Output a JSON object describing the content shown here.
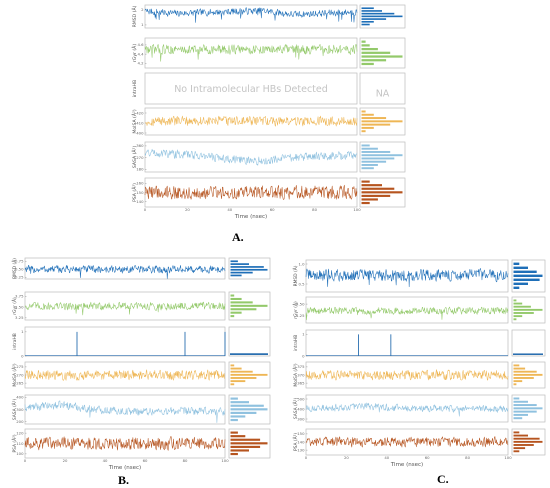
{
  "figure": {
    "captions": [
      "A.",
      "B.",
      "C."
    ]
  },
  "colors": {
    "rmsd": "#1f6fb8",
    "rg": "#93c96a",
    "intraHB": "#2a6fb0",
    "molsa": "#eeb655",
    "sasa": "#8fc1df",
    "psa": "#b6541f",
    "frame": "#bbbbbb",
    "na_text": "#c4c4c4"
  },
  "chart_data": [
    {
      "type": "line",
      "panel": "A.",
      "xlabel": "Time (nsec)",
      "xlim": [
        0,
        100
      ],
      "xticks": [
        "0",
        "20",
        "40",
        "60",
        "80",
        "100"
      ],
      "no_data_message": "No Intramolecular HBs Detected",
      "na_label": "NA",
      "series": [
        {
          "key": "rmsd",
          "ylabel": "RMSD (Å)",
          "yticks": [
            "2",
            "1"
          ],
          "ylim": [
            0.8,
            2.3
          ],
          "base": 1.9,
          "amp": 0.15,
          "trend": [
            [
              0,
              0
            ],
            [
              0.15,
              -0.2
            ],
            [
              0.3,
              -0.1
            ],
            [
              0.55,
              0.05
            ],
            [
              0.7,
              -0.3
            ],
            [
              1,
              -0.05
            ]
          ],
          "spikes": 14,
          "hist": [
            3,
            5,
            8,
            10,
            6,
            3,
            2
          ]
        },
        {
          "key": "rg",
          "ylabel": "rGyr (Å)",
          "yticks": [
            "4.6",
            "4.4",
            "4.2"
          ],
          "ylim": [
            4.1,
            4.75
          ],
          "base": 4.5,
          "amp": 0.07,
          "trend": [
            [
              0,
              0
            ],
            [
              1,
              0
            ]
          ],
          "spikes": 6,
          "hist": [
            1,
            2,
            4,
            7,
            10,
            6,
            3
          ]
        },
        {
          "key": "intraHB",
          "ylabel": "intraHB",
          "empty": true
        },
        {
          "key": "molsa",
          "ylabel": "MolSA (Å²)",
          "yticks": [
            "420",
            "410",
            "400"
          ],
          "ylim": [
            398,
            425
          ],
          "base": 412,
          "amp": 3.2,
          "trend": [
            [
              0,
              0
            ],
            [
              1,
              0
            ]
          ],
          "spikes": 0,
          "hist": [
            1,
            3,
            6,
            10,
            7,
            3,
            1
          ]
        },
        {
          "key": "sasa",
          "ylabel": "SASA (Å²)",
          "yticks": [
            "360",
            "270",
            "180"
          ],
          "ylim": [
            160,
            390
          ],
          "base": 300,
          "amp": 22,
          "trend": [
            [
              0,
              0.1
            ],
            [
              0.25,
              -0.1
            ],
            [
              0.4,
              -0.35
            ],
            [
              0.55,
              -0.5
            ],
            [
              0.7,
              -0.25
            ],
            [
              1,
              -0.1
            ]
          ],
          "spikes": 0,
          "hist": [
            2,
            4,
            7,
            10,
            8,
            6,
            4,
            3
          ]
        },
        {
          "key": "psa",
          "ylabel": "PSA (Å²)",
          "yticks": [
            "160",
            "150",
            "140"
          ],
          "ylim": [
            134,
            166
          ],
          "base": 150,
          "amp": 5,
          "trend": [
            [
              0,
              0
            ],
            [
              1,
              0
            ]
          ],
          "spikes": 0,
          "hist": [
            2,
            5,
            8,
            10,
            7,
            4,
            2
          ]
        }
      ]
    },
    {
      "type": "line",
      "panel": "B.",
      "xlabel": "Time (nsec)",
      "xlim": [
        0,
        100
      ],
      "xticks": [
        "0",
        "20",
        "40",
        "60",
        "80",
        "100"
      ],
      "series": [
        {
          "key": "rmsd",
          "ylabel": "RMSD (Å)",
          "yticks": [
            "0.75",
            "0.50",
            "0.25"
          ],
          "ylim": [
            0.2,
            0.85
          ],
          "base": 0.5,
          "amp": 0.08,
          "trend": [
            [
              0,
              0
            ],
            [
              1,
              0
            ]
          ],
          "spikes": 3,
          "hist": [
            2,
            5,
            9,
            10,
            6,
            3
          ]
        },
        {
          "key": "rg",
          "ylabel": "rGyr (Å)",
          "yticks": [
            "3.75",
            "3.50",
            "3.25"
          ],
          "ylim": [
            3.2,
            3.85
          ],
          "base": 3.52,
          "amp": 0.06,
          "trend": [
            [
              0,
              0
            ],
            [
              1,
              0
            ]
          ],
          "spikes": 4,
          "hist": [
            1,
            3,
            6,
            10,
            7,
            3,
            1
          ]
        },
        {
          "key": "intraHB",
          "ylabel": "intraHB",
          "yticks": [
            "1",
            "0"
          ],
          "ylim": [
            0,
            1.2
          ],
          "pulses": [
            26,
            80,
            100
          ],
          "hist_bar": [
            0,
            1
          ]
        },
        {
          "key": "molsa",
          "ylabel": "MolSA (Å²)",
          "yticks": [
            "275",
            "270",
            "265"
          ],
          "ylim": [
            262,
            278
          ],
          "base": 270,
          "amp": 2.0,
          "trend": [
            [
              0,
              0
            ],
            [
              1,
              0
            ]
          ],
          "spikes": 0,
          "hist": [
            1,
            3,
            6,
            10,
            7,
            4,
            1
          ]
        },
        {
          "key": "sasa",
          "ylabel": "SASA (Å²)",
          "yticks": [
            "400",
            "300",
            "200"
          ],
          "ylim": [
            180,
            420
          ],
          "base": 285,
          "amp": 22,
          "trend": [
            [
              0,
              0.25
            ],
            [
              0.2,
              0.45
            ],
            [
              0.3,
              0.2
            ],
            [
              0.5,
              0
            ],
            [
              1,
              0
            ]
          ],
          "spikes": 2,
          "hist": [
            2,
            5,
            9,
            10,
            7,
            4,
            2
          ]
        },
        {
          "key": "psa",
          "ylabel": "PSA (Å²)",
          "yticks": [
            "120",
            "110",
            "100"
          ],
          "ylim": [
            96,
            124
          ],
          "base": 110,
          "amp": 4,
          "trend": [
            [
              0,
              0
            ],
            [
              1,
              0
            ]
          ],
          "spikes": 0,
          "hist": [
            2,
            4,
            8,
            10,
            8,
            5,
            2
          ]
        }
      ]
    },
    {
      "type": "line",
      "panel": "C.",
      "xlabel": "Time (nsec)",
      "xlim": [
        0,
        100
      ],
      "xticks": [
        "0",
        "20",
        "40",
        "60",
        "80",
        "100"
      ],
      "series": [
        {
          "key": "rmsd",
          "ylabel": "RMSD (Å)",
          "yticks": [
            "1.0",
            "0.5"
          ],
          "ylim": [
            0.3,
            1.1
          ],
          "base": 0.72,
          "amp": 0.1,
          "trend": [
            [
              0,
              0
            ],
            [
              1,
              0
            ]
          ],
          "spikes": 4,
          "hist": [
            2,
            5,
            8,
            10,
            9,
            5,
            2
          ]
        },
        {
          "key": "rg",
          "ylabel": "rGyr (Å)",
          "yticks": [
            "4.50",
            "4.25"
          ],
          "ylim": [
            4.1,
            4.65
          ],
          "base": 4.36,
          "amp": 0.05,
          "trend": [
            [
              0,
              0
            ],
            [
              1,
              0
            ]
          ],
          "spikes": 5,
          "hist": [
            1,
            3,
            6,
            10,
            7,
            3,
            1
          ]
        },
        {
          "key": "intraHB",
          "ylabel": "intraHB",
          "yticks": [
            "1",
            "0"
          ],
          "ylim": [
            0,
            1.2
          ],
          "pulses": [
            26,
            42
          ],
          "hist_bar": [
            0,
            1
          ]
        },
        {
          "key": "molsa",
          "ylabel": "MolSA (Å²)",
          "yticks": [
            "375",
            "370",
            "365"
          ],
          "ylim": [
            362,
            378
          ],
          "base": 370,
          "amp": 2.0,
          "trend": [
            [
              0,
              0
            ],
            [
              1,
              0
            ]
          ],
          "spikes": 0,
          "hist": [
            2,
            4,
            8,
            10,
            7,
            3,
            1
          ]
        },
        {
          "key": "sasa",
          "ylabel": "SASA (Å²)",
          "yticks": [
            "500",
            "400",
            "300"
          ],
          "ylim": [
            270,
            540
          ],
          "base": 400,
          "amp": 24,
          "trend": [
            [
              0,
              0
            ],
            [
              0.15,
              0.1
            ],
            [
              0.3,
              0.2
            ],
            [
              0.5,
              0.05
            ],
            [
              1,
              0
            ]
          ],
          "spikes": 2,
          "hist": [
            2,
            5,
            8,
            10,
            8,
            5,
            3
          ]
        },
        {
          "key": "psa",
          "ylabel": "PSA (Å²)",
          "yticks": [
            "150",
            "140",
            "130"
          ],
          "ylim": [
            124,
            156
          ],
          "base": 140,
          "amp": 4,
          "trend": [
            [
              0,
              0
            ],
            [
              1,
              0
            ]
          ],
          "spikes": 0,
          "hist": [
            2,
            5,
            9,
            10,
            7,
            4,
            2
          ]
        }
      ]
    }
  ]
}
